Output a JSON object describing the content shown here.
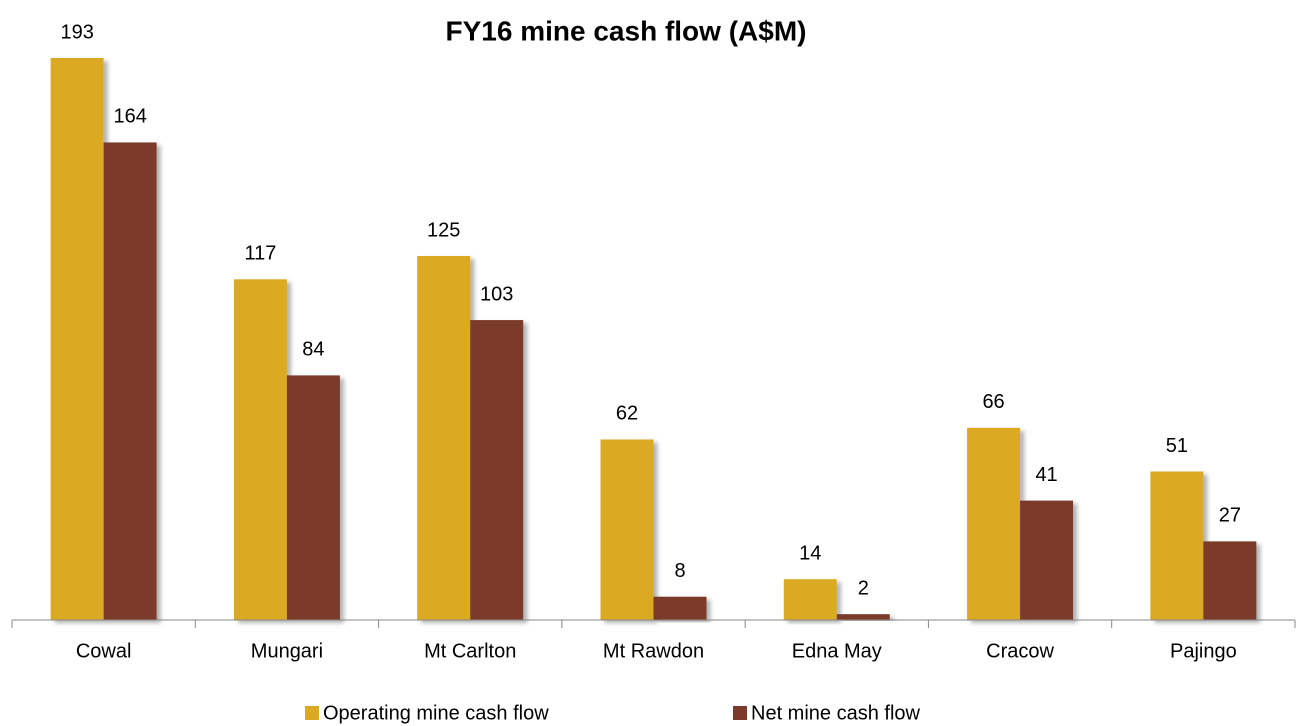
{
  "chart_data": {
    "type": "bar",
    "title": "FY16 mine cash flow (A$M)",
    "categories": [
      "Cowal",
      "Mungari",
      "Mt Carlton",
      "Mt Rawdon",
      "Edna May",
      "Cracow",
      "Pajingo"
    ],
    "series": [
      {
        "name": "Operating mine cash flow",
        "color": "#dba923",
        "values": [
          193,
          117,
          125,
          62,
          14,
          66,
          51
        ]
      },
      {
        "name": "Net mine cash flow",
        "color": "#7b3a2b",
        "values": [
          164,
          84,
          103,
          8,
          2,
          41,
          27
        ]
      }
    ],
    "legend": "bottom"
  }
}
